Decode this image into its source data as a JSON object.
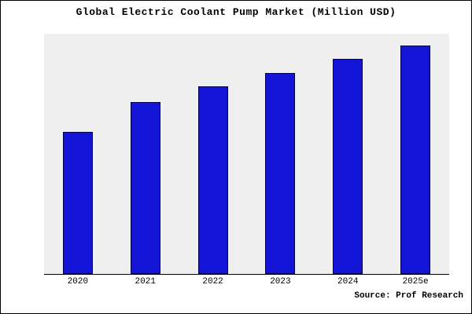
{
  "title": "Global Electric Coolant Pump Market (Million USD)",
  "source": "Source: Prof Research",
  "colors": {
    "bar_fill": "#1414d6",
    "bar_border": "#00004d",
    "plot_background": "#efefef",
    "page_background": "#ffffff",
    "frame_border": "#000000"
  },
  "chart_data": {
    "type": "bar",
    "categories": [
      "2020",
      "2021",
      "2022",
      "2023",
      "2024",
      "2025e"
    ],
    "values": [
      62,
      75,
      82,
      88,
      94,
      100
    ],
    "title": "Global Electric Coolant Pump Market (Million USD)",
    "xlabel": "",
    "ylabel": "",
    "ylim": [
      0,
      105
    ],
    "grid": false,
    "legend": false,
    "value_units": "relative index (no y-axis labels shown in image)"
  }
}
